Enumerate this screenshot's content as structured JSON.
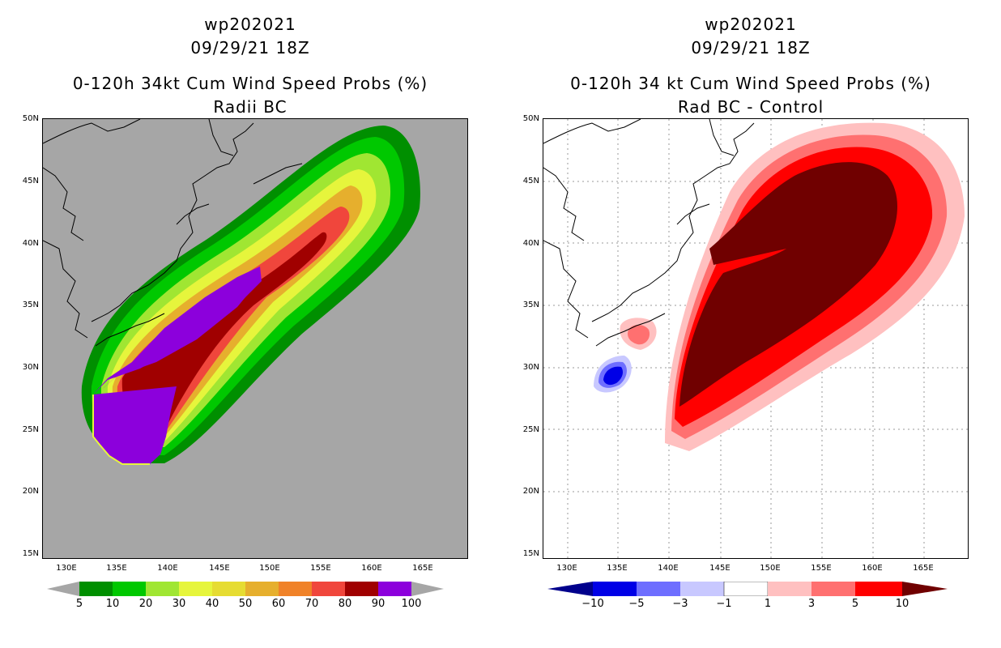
{
  "left": {
    "storm_id": "wp202021",
    "datetime": "09/29/21 18Z",
    "title": "0-120h 34kt Cum Wind Speed Probs (%)",
    "subtitle": "Radii BC",
    "colorbar": {
      "labels": [
        "5",
        "10",
        "20",
        "30",
        "40",
        "50",
        "60",
        "70",
        "80",
        "90",
        "100"
      ],
      "colors": [
        "#008f00",
        "#00c800",
        "#00e000",
        "#a0e632",
        "#e6f53c",
        "#e6dc32",
        "#e6af2d",
        "#f08228",
        "#f0463c",
        "#a00000",
        "#8c00dc"
      ]
    }
  },
  "right": {
    "storm_id": "wp202021",
    "datetime": "09/29/21 18Z",
    "title": "0-120h 34 kt Cum Wind Speed Probs (%)",
    "subtitle": "Rad BC - Control",
    "colorbar": {
      "labels": [
        "−10",
        "−5",
        "−3",
        "−1",
        "1",
        "3",
        "5",
        "10"
      ],
      "colors": [
        "#00008c",
        "#0000e6",
        "#6e6eff",
        "#c8c8ff",
        "#ffffff",
        "#ffc0c0",
        "#ff7070",
        "#ff0000",
        "#700000"
      ]
    }
  },
  "axes": {
    "lat_labels": [
      "50N",
      "45N",
      "40N",
      "35N",
      "30N",
      "25N",
      "20N",
      "15N"
    ],
    "lon_labels": [
      "130E",
      "135E",
      "140E",
      "145E",
      "150E",
      "155E",
      "160E",
      "165E"
    ]
  }
}
